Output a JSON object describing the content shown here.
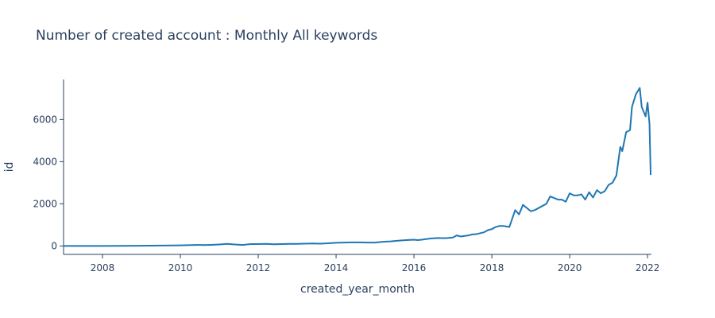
{
  "chart_data": {
    "type": "line",
    "title": "Number of created account : Monthly All keywords",
    "xlabel": "created_year_month",
    "ylabel": "id",
    "xlim": [
      2007.0,
      2022.1
    ],
    "ylim": [
      -400,
      7900
    ],
    "x_ticks": [
      2008,
      2010,
      2012,
      2014,
      2016,
      2018,
      2020,
      2022
    ],
    "y_ticks": [
      0,
      2000,
      4000,
      6000
    ],
    "y_tick_labels": [
      "0",
      "2000",
      "4000",
      "6000"
    ],
    "grid": false,
    "legend": "none",
    "colors": {
      "line": "#1f77b4",
      "text": "#2a3f5f"
    },
    "series": [
      {
        "x": [
          2007.0,
          2007.5,
          2008.0,
          2008.5,
          2009.0,
          2009.5,
          2010.0,
          2010.2,
          2010.4,
          2010.6,
          2010.8,
          2011.0,
          2011.2,
          2011.4,
          2011.6,
          2011.8,
          2012.0,
          2012.2,
          2012.4,
          2012.6,
          2012.8,
          2013.0,
          2013.2,
          2013.4,
          2013.6,
          2013.8,
          2014.0,
          2014.2,
          2014.4,
          2014.6,
          2014.8,
          2015.0,
          2015.2,
          2015.4,
          2015.6,
          2015.8,
          2016.0,
          2016.1,
          2016.2,
          2016.4,
          2016.6,
          2016.8,
          2017.0,
          2017.1,
          2017.2,
          2017.4,
          2017.5,
          2017.6,
          2017.8,
          2017.9,
          2018.0,
          2018.1,
          2018.2,
          2018.3,
          2018.45,
          2018.6,
          2018.7,
          2018.8,
          2019.0,
          2019.1,
          2019.2,
          2019.4,
          2019.5,
          2019.7,
          2019.8,
          2019.9,
          2020.0,
          2020.1,
          2020.2,
          2020.3,
          2020.4,
          2020.5,
          2020.6,
          2020.7,
          2020.8,
          2020.9,
          2021.0,
          2021.1,
          2021.2,
          2021.3,
          2021.35,
          2021.45,
          2021.55,
          2021.6,
          2021.7,
          2021.8,
          2021.85,
          2021.95,
          2022.0,
          2022.05,
          2022.08
        ],
        "y": [
          0,
          0,
          0,
          5,
          10,
          20,
          30,
          40,
          50,
          45,
          55,
          70,
          100,
          70,
          50,
          90,
          90,
          100,
          80,
          90,
          100,
          100,
          110,
          120,
          110,
          130,
          150,
          160,
          170,
          170,
          160,
          160,
          200,
          220,
          250,
          280,
          300,
          280,
          300,
          350,
          380,
          370,
          400,
          500,
          450,
          500,
          550,
          560,
          650,
          750,
          800,
          900,
          950,
          950,
          900,
          1700,
          1500,
          1950,
          1650,
          1700,
          1800,
          2000,
          2350,
          2200,
          2200,
          2100,
          2500,
          2400,
          2400,
          2450,
          2200,
          2550,
          2300,
          2650,
          2500,
          2600,
          2900,
          3000,
          3350,
          4700,
          4500,
          5400,
          5500,
          6600,
          7200,
          7500,
          6600,
          6150,
          6800,
          5800,
          3400
        ]
      }
    ]
  }
}
